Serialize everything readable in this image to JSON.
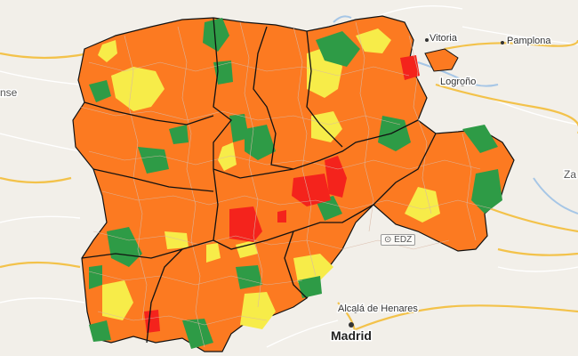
{
  "colors": {
    "background": "#f2efe9",
    "high": "#fc7a21",
    "medium": "#f7ec49",
    "low": "#2e9b46",
    "very_high": "#f4231c",
    "road_major": "#f3c24a",
    "road_minor": "#ffffff",
    "water": "#a6c6e6",
    "border": "#111111"
  },
  "cities": [
    {
      "name": "Vitoria",
      "size": "small"
    },
    {
      "name": "Pamplona",
      "size": "small"
    },
    {
      "name": "Logroño",
      "size": "small"
    },
    {
      "name": "Alcalá de Henares",
      "size": "small"
    },
    {
      "name": "Madrid",
      "size": "big"
    }
  ],
  "edge_labels": {
    "left": "nse",
    "right": "Za"
  },
  "watermark": "EDZ"
}
